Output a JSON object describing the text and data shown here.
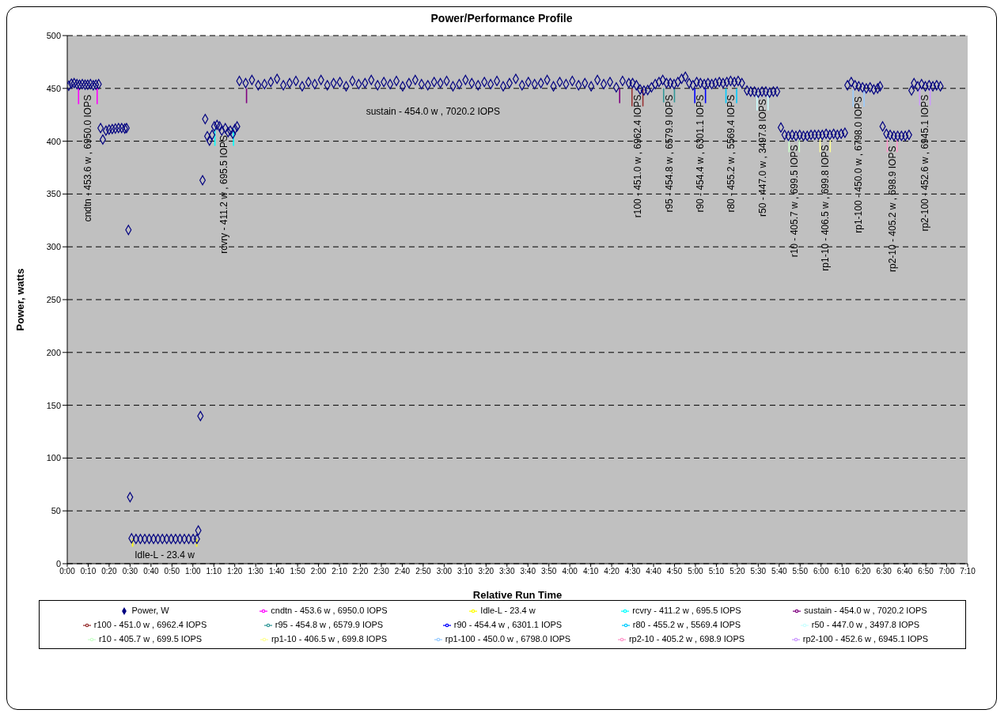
{
  "chart_data": {
    "type": "scatter",
    "title": "Power/Performance Profile",
    "xlabel": "Relative Run Time",
    "ylabel": "Power, watts",
    "xlim": [
      0,
      7.1667
    ],
    "xticks": [
      {
        "value": 0,
        "label": "0:00"
      },
      {
        "value": 0.1667,
        "label": "0:10"
      },
      {
        "value": 0.3333,
        "label": "0:20"
      },
      {
        "value": 0.5,
        "label": "0:30"
      },
      {
        "value": 0.6667,
        "label": "0:40"
      },
      {
        "value": 0.8333,
        "label": "0:50"
      },
      {
        "value": 1,
        "label": "1:00"
      },
      {
        "value": 1.1667,
        "label": "1:10"
      },
      {
        "value": 1.3333,
        "label": "1:20"
      },
      {
        "value": 1.5,
        "label": "1:30"
      },
      {
        "value": 1.6667,
        "label": "1:40"
      },
      {
        "value": 1.8333,
        "label": "1:50"
      },
      {
        "value": 2,
        "label": "2:00"
      },
      {
        "value": 2.1667,
        "label": "2:10"
      },
      {
        "value": 2.3333,
        "label": "2:20"
      },
      {
        "value": 2.5,
        "label": "2:30"
      },
      {
        "value": 2.6667,
        "label": "2:40"
      },
      {
        "value": 2.8333,
        "label": "2:50"
      },
      {
        "value": 3,
        "label": "3:00"
      },
      {
        "value": 3.1667,
        "label": "3:10"
      },
      {
        "value": 3.3333,
        "label": "3:20"
      },
      {
        "value": 3.5,
        "label": "3:30"
      },
      {
        "value": 3.6667,
        "label": "3:40"
      },
      {
        "value": 3.8333,
        "label": "3:50"
      },
      {
        "value": 4,
        "label": "4:00"
      },
      {
        "value": 4.1667,
        "label": "4:10"
      },
      {
        "value": 4.3333,
        "label": "4:20"
      },
      {
        "value": 4.5,
        "label": "4:30"
      },
      {
        "value": 4.6667,
        "label": "4:40"
      },
      {
        "value": 4.8333,
        "label": "4:50"
      },
      {
        "value": 5,
        "label": "5:00"
      },
      {
        "value": 5.1667,
        "label": "5:10"
      },
      {
        "value": 5.3333,
        "label": "5:20"
      },
      {
        "value": 5.5,
        "label": "5:30"
      },
      {
        "value": 5.6667,
        "label": "5:40"
      },
      {
        "value": 5.8333,
        "label": "5:50"
      },
      {
        "value": 6,
        "label": "6:00"
      },
      {
        "value": 6.1667,
        "label": "6:10"
      },
      {
        "value": 6.3333,
        "label": "6:20"
      },
      {
        "value": 6.5,
        "label": "6:30"
      },
      {
        "value": 6.6667,
        "label": "6:40"
      },
      {
        "value": 6.8333,
        "label": "6:50"
      },
      {
        "value": 7,
        "label": "7:00"
      },
      {
        "value": 7.1667,
        "label": "7:10"
      }
    ],
    "ylim": [
      0,
      500
    ],
    "yticks": [
      0,
      50,
      100,
      150,
      200,
      250,
      300,
      350,
      400,
      450,
      500
    ],
    "grid": "y",
    "legend": "bottom",
    "line_style": "solid",
    "series": [
      {
        "name": "Power, W",
        "marker": "diamond",
        "color": "#000080",
        "x": [
          0.012,
          0.033,
          0.055,
          0.077,
          0.098,
          0.12,
          0.142,
          0.163,
          0.185,
          0.207,
          0.228,
          0.25,
          0.265,
          0.283,
          0.308,
          0.333,
          0.358,
          0.383,
          0.408,
          0.433,
          0.458,
          0.472,
          0.487,
          0.5,
          0.512,
          0.547,
          0.582,
          0.617,
          0.652,
          0.687,
          0.722,
          0.757,
          0.792,
          0.827,
          0.862,
          0.897,
          0.932,
          0.967,
          1.002,
          1.032,
          1.043,
          1.06,
          1.077,
          1.098,
          1.115,
          1.132,
          1.153,
          1.17,
          1.192,
          1.213,
          1.23,
          1.258,
          1.28,
          1.298,
          1.318,
          1.335,
          1.352,
          1.37,
          1.42,
          1.47,
          1.52,
          1.57,
          1.62,
          1.67,
          1.72,
          1.77,
          1.82,
          1.87,
          1.92,
          1.97,
          2.02,
          2.07,
          2.12,
          2.17,
          2.22,
          2.27,
          2.32,
          2.37,
          2.42,
          2.47,
          2.52,
          2.57,
          2.62,
          2.67,
          2.72,
          2.77,
          2.82,
          2.87,
          2.92,
          2.97,
          3.02,
          3.07,
          3.12,
          3.17,
          3.22,
          3.27,
          3.32,
          3.37,
          3.42,
          3.47,
          3.52,
          3.57,
          3.62,
          3.67,
          3.72,
          3.77,
          3.82,
          3.87,
          3.92,
          3.97,
          4.02,
          4.07,
          4.12,
          4.17,
          4.22,
          4.27,
          4.32,
          4.37,
          4.42,
          4.47,
          4.5,
          4.53,
          4.56,
          4.59,
          4.62,
          4.65,
          4.68,
          4.71,
          4.74,
          4.77,
          4.8,
          4.83,
          4.86,
          4.89,
          4.92,
          4.95,
          4.98,
          5.01,
          5.04,
          5.07,
          5.1,
          5.13,
          5.16,
          5.19,
          5.22,
          5.25,
          5.28,
          5.31,
          5.34,
          5.37,
          5.41,
          5.44,
          5.47,
          5.5,
          5.53,
          5.56,
          5.59,
          5.62,
          5.65,
          5.68,
          5.71,
          5.74,
          5.77,
          5.8,
          5.83,
          5.86,
          5.89,
          5.92,
          5.95,
          5.98,
          6.01,
          6.04,
          6.07,
          6.1,
          6.13,
          6.16,
          6.19,
          6.21,
          6.24,
          6.27,
          6.3,
          6.33,
          6.36,
          6.39,
          6.42,
          6.45,
          6.47,
          6.49,
          6.52,
          6.55,
          6.58,
          6.61,
          6.64,
          6.67,
          6.7,
          6.72,
          6.74,
          6.77,
          6.8,
          6.83,
          6.86,
          6.89,
          6.92,
          6.95
        ],
        "values": [
          452.5,
          454.5,
          455,
          454,
          453.5,
          454,
          453.5,
          453.5,
          454,
          453,
          453.5,
          454,
          412.4,
          401.6,
          410,
          411,
          411.5,
          412,
          412.4,
          412.4,
          412,
          412.4,
          316,
          63,
          24,
          23.4,
          23.4,
          23.4,
          23.4,
          23.4,
          23.4,
          23.4,
          23.4,
          23.4,
          23.4,
          23.4,
          23.4,
          23.4,
          23.4,
          23.4,
          31.4,
          139.8,
          363,
          421,
          404.7,
          400.6,
          406,
          414,
          415.4,
          414,
          410,
          412.3,
          408.5,
          410,
          407,
          411.6,
          414,
          457,
          455,
          458,
          453,
          454,
          456,
          459,
          453,
          455,
          457,
          452,
          456,
          454,
          458,
          453,
          455,
          456,
          452,
          457,
          454,
          455,
          458,
          453,
          456,
          454,
          457,
          452,
          455,
          458,
          454,
          453,
          456,
          455,
          457,
          452,
          454,
          458,
          455,
          453,
          456,
          454,
          457,
          452,
          455,
          459,
          453,
          456,
          454,
          455,
          458,
          452,
          456,
          454,
          457,
          453,
          455,
          452,
          458,
          454,
          456,
          451,
          457,
          455,
          455,
          453,
          449,
          448,
          448.5,
          451,
          454,
          456,
          458,
          455,
          455,
          454,
          456,
          459,
          461,
          455,
          453,
          456,
          455,
          454,
          455,
          454,
          455,
          456,
          455,
          456,
          457,
          456,
          457,
          455,
          448,
          447,
          447,
          446,
          447,
          447,
          446,
          447,
          447,
          413,
          406,
          405,
          406,
          405,
          406,
          405,
          405,
          406,
          406,
          406,
          406,
          407,
          406,
          407,
          406,
          407,
          408,
          453,
          456,
          453,
          452,
          451,
          450,
          451,
          449,
          450,
          452,
          414,
          407,
          406,
          405,
          405,
          405,
          405,
          406,
          448,
          455,
          452,
          454,
          452,
          453,
          452,
          453,
          452
        ]
      },
      {
        "name": "cndtn - 453.6 w , 6950.0 IOPS",
        "type": "line",
        "color": "#ff00ff",
        "x": [
          0.09,
          0.09,
          null,
          0.238,
          0.238
        ],
        "values": [
          450,
          435,
          null,
          450,
          435
        ]
      },
      {
        "name": "Idle-L - 23.4 w",
        "type": "line",
        "color": "#ffff00",
        "x": [
          0.52,
          0.52,
          null,
          1.03,
          1.03
        ],
        "values": [
          23.4,
          16,
          null,
          23.4,
          16
        ]
      },
      {
        "name": "rcvry - 411.2 w , 695.5 IOPS",
        "type": "line",
        "color": "#00ffff",
        "x": [
          1.175,
          1.175,
          null,
          1.323,
          1.323
        ],
        "values": [
          411.7,
          395.5,
          null,
          411.7,
          395.5
        ]
      },
      {
        "name": "sustain - 454.0 w , 7020.2 IOPS",
        "type": "line",
        "color": "#800080",
        "x": [
          1.427,
          1.427,
          null,
          4.397,
          4.397
        ],
        "values": [
          450,
          436,
          null,
          450,
          436
        ]
      },
      {
        "name": "r100 - 451.0 w , 6962.4 IOPS",
        "type": "line",
        "color": "#993333",
        "x": [
          4.495,
          4.495,
          null,
          4.582,
          4.582
        ],
        "values": [
          450,
          433,
          null,
          450,
          433
        ]
      },
      {
        "name": "r95 - 454.8 w , 6579.9 IOPS",
        "type": "line",
        "color": "#339999",
        "x": [
          4.747,
          4.747,
          null,
          4.833,
          4.833
        ],
        "values": [
          450,
          436.7,
          null,
          450,
          436.7
        ]
      },
      {
        "name": "r90 - 454.4 w , 6301.1 IOPS",
        "type": "line",
        "color": "#0000ff",
        "x": [
          4.995,
          4.995,
          null,
          5.08,
          5.08
        ],
        "values": [
          450,
          436,
          null,
          450,
          436
        ]
      },
      {
        "name": "r80 - 455.2 w , 5569.4 IOPS",
        "type": "line",
        "color": "#00ccff",
        "x": [
          5.243,
          5.243,
          null,
          5.328,
          5.328
        ],
        "values": [
          450,
          436,
          null,
          450,
          436
        ]
      },
      {
        "name": "r50 - 447.0 w , 3497.8 IOPS",
        "type": "line",
        "color": "#ccffff",
        "x": [
          5.49,
          5.49,
          null,
          5.578,
          5.578
        ],
        "values": [
          446,
          429,
          null,
          446,
          429
        ]
      },
      {
        "name": "r10 - 405.7 w , 699.5 IOPS",
        "type": "line",
        "color": "#ccffcc",
        "x": [
          5.745,
          5.745,
          null,
          5.827,
          5.827
        ],
        "values": [
          402.5,
          389.6,
          null,
          402.5,
          389.6
        ]
      },
      {
        "name": "rp1-10 - 406.5 w , 699.8 IOPS",
        "type": "line",
        "color": "#ffff99",
        "x": [
          5.992,
          5.992,
          null,
          6.073,
          6.073
        ],
        "values": [
          402.5,
          389.6,
          null,
          402.5,
          389.6
        ]
      },
      {
        "name": "rp1-100 - 450.0 w , 6798.0 IOPS",
        "type": "line",
        "color": "#99ccff",
        "x": [
          6.255,
          6.255,
          null,
          6.342,
          6.342
        ],
        "values": [
          448.4,
          432.6,
          null,
          448.4,
          432.6
        ]
      },
      {
        "name": "rp2-10 - 405.2 w , 698.9 IOPS",
        "type": "line",
        "color": "#ff99cc",
        "x": [
          6.527,
          6.527,
          null,
          6.605,
          6.605
        ],
        "values": [
          401.5,
          389.6,
          null,
          401.5,
          389.6
        ]
      },
      {
        "name": "rp2-100 - 452.6 w , 6945.1 IOPS",
        "type": "line",
        "color": "#cc99ff",
        "x": [
          6.785,
          6.785,
          null,
          6.868,
          6.868
        ],
        "values": [
          450,
          434,
          null,
          450,
          434
        ]
      }
    ]
  }
}
